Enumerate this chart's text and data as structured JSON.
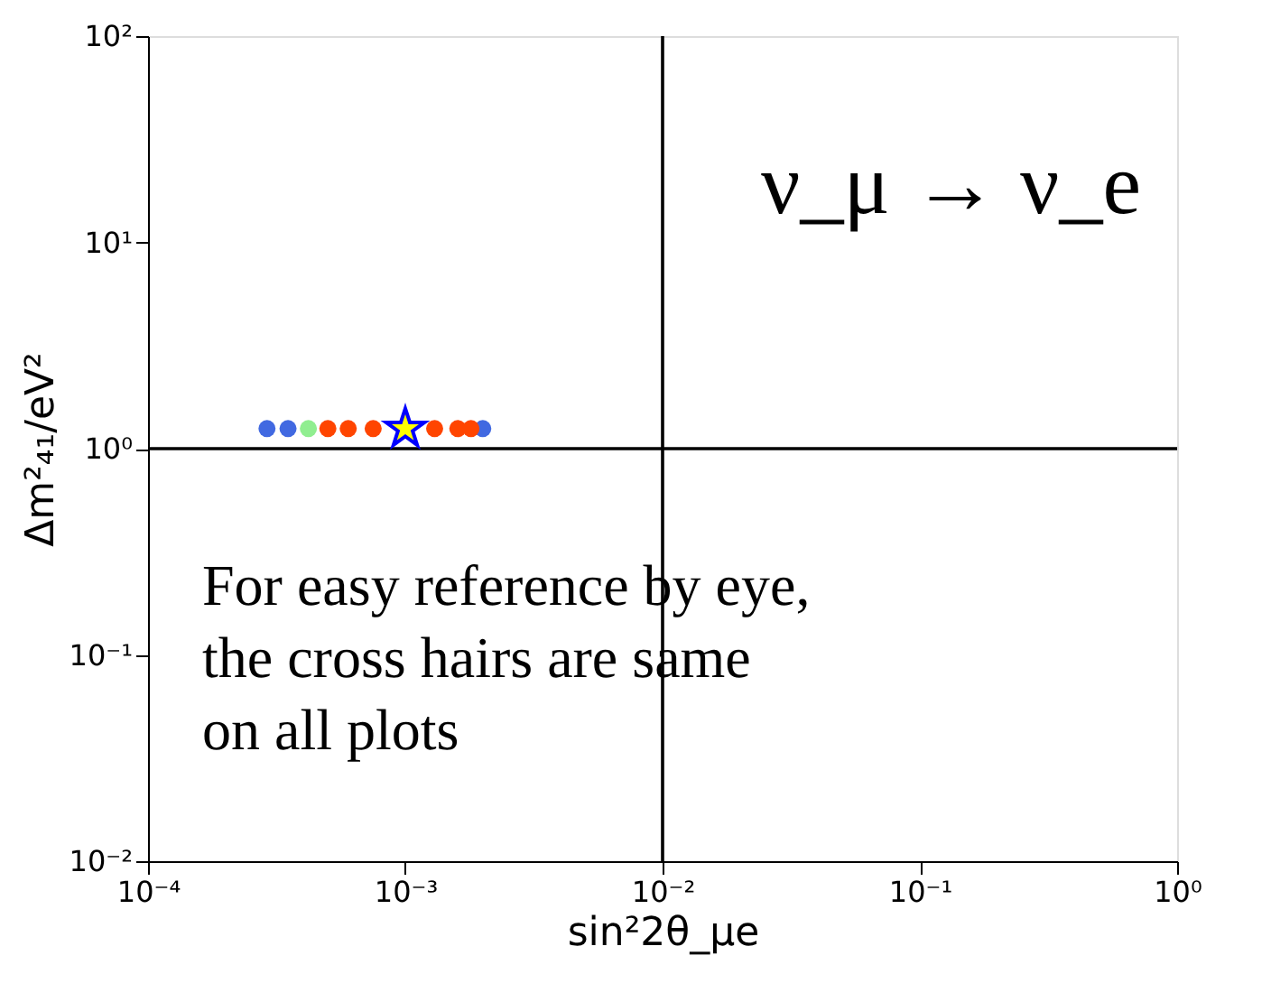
{
  "chart_data": {
    "type": "scatter",
    "xlabel": "sin²2θ_μe",
    "ylabel": "Δm²₄₁/eV²",
    "log": "xy",
    "grid": false,
    "xlim": [
      0.0001,
      1
    ],
    "ylim": [
      0.01,
      100
    ],
    "xticks": [
      {
        "value": 0.0001,
        "label": "10⁻⁴"
      },
      {
        "value": 0.001,
        "label": "10⁻³"
      },
      {
        "value": 0.01,
        "label": "10⁻²"
      },
      {
        "value": 0.1,
        "label": "10⁻¹"
      },
      {
        "value": 1,
        "label": "10⁰"
      }
    ],
    "yticks": [
      {
        "value": 0.01,
        "label": "10⁻²"
      },
      {
        "value": 0.1,
        "label": "10⁻¹"
      },
      {
        "value": 1,
        "label": "10⁰"
      },
      {
        "value": 10,
        "label": "10¹"
      },
      {
        "value": 100,
        "label": "10²"
      }
    ],
    "series": [
      {
        "color": "#4169e1",
        "marker": "circle",
        "x": [
          0.00029,
          0.00035,
          0.002
        ],
        "values": [
          1.25,
          1.25,
          1.25
        ]
      },
      {
        "color": "#90ee90",
        "marker": "circle",
        "x": [
          0.00042
        ],
        "values": [
          1.25
        ]
      },
      {
        "color": "#ff4500",
        "marker": "circle",
        "x": [
          0.0005,
          0.0006,
          0.00075,
          0.0013,
          0.0016,
          0.0018
        ],
        "values": [
          1.25,
          1.25,
          1.25,
          1.25,
          1.25,
          1.25
        ]
      },
      {
        "color": "#ffff00",
        "marker": "star",
        "x": [
          0.001
        ],
        "values": [
          1.25
        ]
      }
    ],
    "ref_lines": [
      {
        "axis": "x",
        "value": 0.01,
        "color": "#000000"
      },
      {
        "axis": "y",
        "value": 1,
        "color": "#000000"
      }
    ],
    "annotations": [
      "ν_μ → ν_e",
      "For easy reference by eye,\nthe cross hairs are same\non all plots"
    ]
  }
}
